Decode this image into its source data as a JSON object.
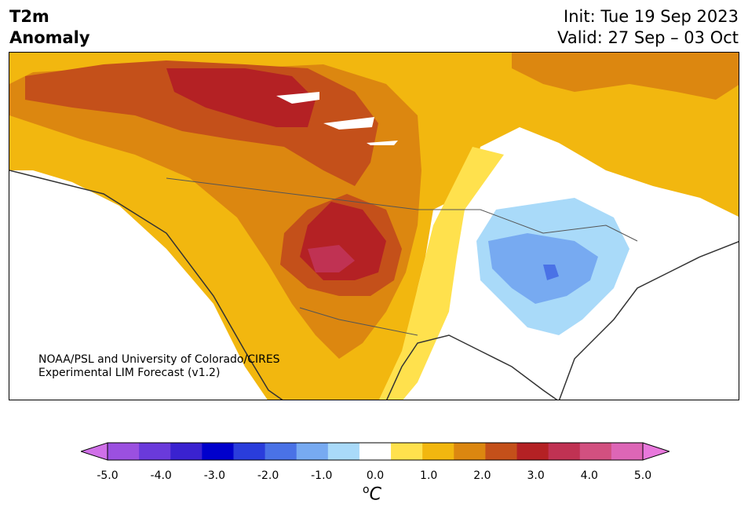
{
  "header": {
    "title_line1": "T2m",
    "title_line2": "Anomaly",
    "init_line": "Init: Tue 19 Sep 2023",
    "valid_line": "Valid: 27 Sep – 03 Oct"
  },
  "map": {
    "region": "North America",
    "credit_line1": "NOAA/PSL and University of Colorado/CIRES",
    "credit_line2": "Experimental LIM Forecast (v1.2)"
  },
  "colorbar": {
    "unit_base": "C",
    "unit_prefix": "o",
    "tick_labels": [
      "-5.0",
      "-4.0",
      "-3.0",
      "-2.0",
      "-1.0",
      "0.0",
      "1.0",
      "2.0",
      "3.0",
      "4.0",
      "5.0"
    ],
    "colors": [
      "#d070e8",
      "#9b50e0",
      "#6a3adb",
      "#3a22d0",
      "#0000cc",
      "#2a3ddc",
      "#4a72e6",
      "#77aaf1",
      "#a9daf9",
      "#ffffff",
      "#ffe14d",
      "#f2b70f",
      "#dc8710",
      "#c4501a",
      "#b42124",
      "#c03253",
      "#d25080",
      "#dd66b6",
      "#e878dc"
    ]
  }
}
